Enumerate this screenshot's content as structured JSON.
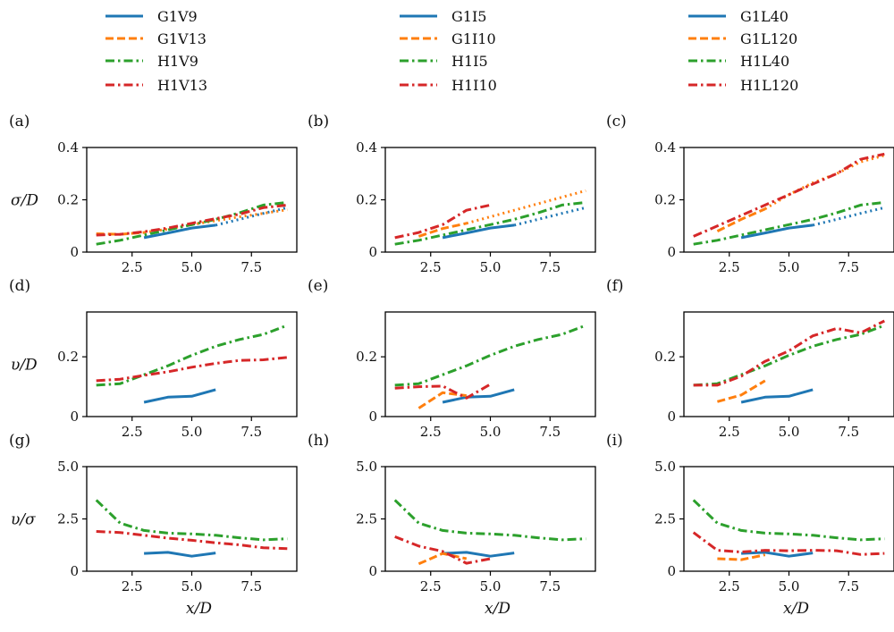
{
  "colors": {
    "G": "#1f77b4",
    "G2": "#ff7f0e",
    "H": "#2ca02c",
    "H2": "#d62728"
  },
  "legends": [
    {
      "entries": [
        {
          "label": "G1V9",
          "style": "solid",
          "color": "#1f77b4"
        },
        {
          "label": "G1V13",
          "style": "dashed",
          "color": "#ff7f0e"
        },
        {
          "label": "H1V9",
          "style": "dashdot",
          "color": "#2ca02c"
        },
        {
          "label": "H1V13",
          "style": "dashdot",
          "color": "#d62728"
        }
      ]
    },
    {
      "entries": [
        {
          "label": "G1I5",
          "style": "solid",
          "color": "#1f77b4"
        },
        {
          "label": "G1I10",
          "style": "dashed",
          "color": "#ff7f0e"
        },
        {
          "label": "H1I5",
          "style": "dashdot",
          "color": "#2ca02c"
        },
        {
          "label": "H1I10",
          "style": "dashdot",
          "color": "#d62728"
        }
      ]
    },
    {
      "entries": [
        {
          "label": "G1L40",
          "style": "solid",
          "color": "#1f77b4"
        },
        {
          "label": "G1L120",
          "style": "dashed",
          "color": "#ff7f0e"
        },
        {
          "label": "H1L40",
          "style": "dashdot",
          "color": "#2ca02c"
        },
        {
          "label": "H1L120",
          "style": "dashdot",
          "color": "#d62728"
        }
      ]
    }
  ],
  "rows": [
    {
      "ylabel": "σ/D",
      "ylim": [
        0,
        0.4
      ],
      "yticks": [
        "0",
        "0.2",
        "0.4"
      ],
      "ytickvals": [
        0,
        0.2,
        0.4
      ]
    },
    {
      "ylabel": "υ/D",
      "ylim": [
        0,
        0.35
      ],
      "yticks": [
        "0",
        "0.2"
      ],
      "ytickvals": [
        0,
        0.2
      ]
    },
    {
      "ylabel": "υ/σ",
      "ylim": [
        0,
        5.0
      ],
      "yticks": [
        "0",
        "2.5",
        "5.0"
      ],
      "ytickvals": [
        0,
        2.5,
        5.0
      ]
    }
  ],
  "xaxis": {
    "xlim": [
      0.6,
      9.4
    ],
    "xticks": [
      "2.5",
      "5.0",
      "7.5"
    ],
    "xtickvals": [
      2.5,
      5.0,
      7.5
    ],
    "xlabel": "x/D"
  },
  "chart_data": [
    {
      "panel": "(a)",
      "type": "line",
      "series": [
        {
          "name": "G1V9",
          "style": "solid",
          "color": "#1f77b4",
          "x": [
            3,
            4,
            5,
            6
          ],
          "y": [
            0.055,
            0.073,
            0.092,
            0.103
          ]
        },
        {
          "style": "dotted",
          "color": "#1f77b4",
          "x": [
            6,
            7,
            8,
            9
          ],
          "y": [
            0.103,
            0.125,
            0.148,
            0.17
          ]
        },
        {
          "name": "G1V13",
          "style": "dashed",
          "color": "#ff7f0e",
          "x": [
            1,
            2,
            3
          ],
          "y": [
            0.07,
            0.068,
            0.075
          ]
        },
        {
          "style": "dotted",
          "color": "#ff7f0e",
          "x": [
            3,
            4,
            5,
            6,
            7,
            8,
            9
          ],
          "y": [
            0.075,
            0.088,
            0.105,
            0.12,
            0.135,
            0.148,
            0.162
          ]
        },
        {
          "name": "H1V9",
          "style": "dashdot",
          "color": "#2ca02c",
          "x": [
            1,
            2,
            3,
            4,
            5,
            6,
            7,
            8,
            9
          ],
          "y": [
            0.03,
            0.045,
            0.065,
            0.085,
            0.105,
            0.125,
            0.15,
            0.18,
            0.19
          ]
        },
        {
          "name": "H1V13",
          "style": "dashdot",
          "color": "#d62728",
          "x": [
            1,
            2,
            3,
            4,
            5,
            6,
            7,
            8,
            9
          ],
          "y": [
            0.065,
            0.068,
            0.078,
            0.092,
            0.11,
            0.128,
            0.145,
            0.17,
            0.18
          ]
        }
      ]
    },
    {
      "panel": "(b)",
      "type": "line",
      "series": [
        {
          "name": "G1I5",
          "style": "solid",
          "color": "#1f77b4",
          "x": [
            3,
            4,
            5,
            6
          ],
          "y": [
            0.055,
            0.073,
            0.092,
            0.103
          ]
        },
        {
          "style": "dotted",
          "color": "#1f77b4",
          "x": [
            6,
            7,
            8,
            9
          ],
          "y": [
            0.103,
            0.125,
            0.148,
            0.17
          ]
        },
        {
          "name": "G1I10",
          "style": "dashed",
          "color": "#ff7f0e",
          "x": [
            2,
            3,
            4
          ],
          "y": [
            0.06,
            0.09,
            0.11
          ]
        },
        {
          "style": "dotted",
          "color": "#ff7f0e",
          "x": [
            4,
            5,
            6,
            7,
            8,
            9
          ],
          "y": [
            0.11,
            0.135,
            0.16,
            0.185,
            0.21,
            0.235
          ]
        },
        {
          "name": "H1I5",
          "style": "dashdot",
          "color": "#2ca02c",
          "x": [
            1,
            2,
            3,
            4,
            5,
            6,
            7,
            8,
            9
          ],
          "y": [
            0.03,
            0.045,
            0.065,
            0.085,
            0.105,
            0.125,
            0.15,
            0.18,
            0.19
          ]
        },
        {
          "name": "H1I10",
          "style": "dashdot",
          "color": "#d62728",
          "x": [
            1,
            2,
            3,
            4,
            5
          ],
          "y": [
            0.055,
            0.075,
            0.105,
            0.16,
            0.18
          ]
        }
      ]
    },
    {
      "panel": "(c)",
      "type": "line",
      "series": [
        {
          "name": "G1L40",
          "style": "solid",
          "color": "#1f77b4",
          "x": [
            3,
            4,
            5,
            6
          ],
          "y": [
            0.055,
            0.073,
            0.092,
            0.103
          ]
        },
        {
          "style": "dotted",
          "color": "#1f77b4",
          "x": [
            6,
            7,
            8,
            9
          ],
          "y": [
            0.103,
            0.125,
            0.148,
            0.17
          ]
        },
        {
          "name": "G1L120",
          "style": "dashed",
          "color": "#ff7f0e",
          "x": [
            2,
            3,
            4
          ],
          "y": [
            0.08,
            0.125,
            0.165
          ]
        },
        {
          "style": "dotted",
          "color": "#ff7f0e",
          "x": [
            4,
            5,
            6,
            7,
            8,
            9
          ],
          "y": [
            0.165,
            0.22,
            0.265,
            0.3,
            0.345,
            0.37
          ]
        },
        {
          "name": "H1L40",
          "style": "dashdot",
          "color": "#2ca02c",
          "x": [
            1,
            2,
            3,
            4,
            5,
            6,
            7,
            8,
            9
          ],
          "y": [
            0.03,
            0.045,
            0.065,
            0.085,
            0.105,
            0.125,
            0.15,
            0.18,
            0.19
          ]
        },
        {
          "name": "H1L120",
          "style": "dashdot",
          "color": "#d62728",
          "x": [
            1,
            2,
            3,
            4,
            5,
            6,
            7,
            8,
            9
          ],
          "y": [
            0.06,
            0.1,
            0.14,
            0.18,
            0.22,
            0.26,
            0.3,
            0.355,
            0.375
          ]
        }
      ]
    },
    {
      "panel": "(d)",
      "type": "line",
      "series": [
        {
          "name": "G1V9",
          "style": "solid",
          "color": "#1f77b4",
          "x": [
            3,
            4,
            5,
            6
          ],
          "y": [
            0.048,
            0.065,
            0.068,
            0.09
          ]
        },
        {
          "name": "H1V9",
          "style": "dashdot",
          "color": "#2ca02c",
          "x": [
            1,
            2,
            3,
            4,
            5,
            6,
            7,
            8,
            9
          ],
          "y": [
            0.105,
            0.11,
            0.14,
            0.17,
            0.205,
            0.235,
            0.258,
            0.275,
            0.305
          ]
        },
        {
          "name": "H1V13",
          "style": "dashdot",
          "color": "#d62728",
          "x": [
            1,
            2,
            3,
            4,
            5,
            6,
            7,
            8,
            9
          ],
          "y": [
            0.12,
            0.125,
            0.138,
            0.15,
            0.165,
            0.178,
            0.188,
            0.19,
            0.198
          ]
        }
      ]
    },
    {
      "panel": "(e)",
      "type": "line",
      "series": [
        {
          "name": "G1I5",
          "style": "solid",
          "color": "#1f77b4",
          "x": [
            3,
            4,
            5,
            6
          ],
          "y": [
            0.048,
            0.065,
            0.068,
            0.09
          ]
        },
        {
          "name": "G1I10",
          "style": "dashed",
          "color": "#ff7f0e",
          "x": [
            2,
            3,
            4
          ],
          "y": [
            0.028,
            0.08,
            0.07
          ]
        },
        {
          "name": "H1I5",
          "style": "dashdot",
          "color": "#2ca02c",
          "x": [
            1,
            2,
            3,
            4,
            5,
            6,
            7,
            8,
            9
          ],
          "y": [
            0.105,
            0.11,
            0.14,
            0.17,
            0.205,
            0.235,
            0.258,
            0.275,
            0.305
          ]
        },
        {
          "name": "H1I10",
          "style": "dashdot",
          "color": "#d62728",
          "x": [
            1,
            2,
            3,
            4,
            5
          ],
          "y": [
            0.095,
            0.1,
            0.102,
            0.062,
            0.108
          ]
        }
      ]
    },
    {
      "panel": "(f)",
      "type": "line",
      "series": [
        {
          "name": "G1L40",
          "style": "solid",
          "color": "#1f77b4",
          "x": [
            3,
            4,
            5,
            6
          ],
          "y": [
            0.048,
            0.065,
            0.068,
            0.09
          ]
        },
        {
          "name": "G1L120",
          "style": "dashed",
          "color": "#ff7f0e",
          "x": [
            2,
            3,
            4
          ],
          "y": [
            0.05,
            0.072,
            0.12
          ]
        },
        {
          "name": "H1L40",
          "style": "dashdot",
          "color": "#2ca02c",
          "x": [
            1,
            2,
            3,
            4,
            5,
            6,
            7,
            8,
            9
          ],
          "y": [
            0.105,
            0.11,
            0.14,
            0.17,
            0.205,
            0.235,
            0.258,
            0.275,
            0.305
          ]
        },
        {
          "name": "H1L120",
          "style": "dashdot",
          "color": "#d62728",
          "x": [
            1,
            2,
            3,
            4,
            5,
            6,
            7,
            8,
            9
          ],
          "y": [
            0.105,
            0.105,
            0.135,
            0.185,
            0.22,
            0.27,
            0.295,
            0.28,
            0.32
          ]
        }
      ]
    },
    {
      "panel": "(g)",
      "type": "line",
      "series": [
        {
          "name": "G1V9",
          "style": "solid",
          "color": "#1f77b4",
          "x": [
            3,
            4,
            5,
            6
          ],
          "y": [
            0.85,
            0.9,
            0.72,
            0.87
          ]
        },
        {
          "name": "H1V9",
          "style": "dashdot",
          "color": "#2ca02c",
          "x": [
            1,
            2,
            3,
            4,
            5,
            6,
            7,
            8,
            9
          ],
          "y": [
            3.4,
            2.3,
            1.95,
            1.82,
            1.78,
            1.72,
            1.6,
            1.5,
            1.55
          ]
        },
        {
          "name": "H1V13",
          "style": "dashdot",
          "color": "#d62728",
          "x": [
            1,
            2,
            3,
            4,
            5,
            6,
            7,
            8,
            9
          ],
          "y": [
            1.9,
            1.85,
            1.72,
            1.58,
            1.48,
            1.36,
            1.26,
            1.12,
            1.08
          ]
        }
      ]
    },
    {
      "panel": "(h)",
      "type": "line",
      "series": [
        {
          "name": "G1I5",
          "style": "solid",
          "color": "#1f77b4",
          "x": [
            3,
            4,
            5,
            6
          ],
          "y": [
            0.85,
            0.9,
            0.72,
            0.87
          ]
        },
        {
          "name": "G1I10",
          "style": "dashed",
          "color": "#ff7f0e",
          "x": [
            2,
            3,
            4
          ],
          "y": [
            0.35,
            0.85,
            0.6
          ]
        },
        {
          "name": "H1I5",
          "style": "dashdot",
          "color": "#2ca02c",
          "x": [
            1,
            2,
            3,
            4,
            5,
            6,
            7,
            8,
            9
          ],
          "y": [
            3.4,
            2.3,
            1.95,
            1.82,
            1.78,
            1.72,
            1.6,
            1.5,
            1.55
          ]
        },
        {
          "name": "H1I10",
          "style": "dashdot",
          "color": "#d62728",
          "x": [
            1,
            2,
            3,
            4,
            5
          ],
          "y": [
            1.65,
            1.2,
            0.95,
            0.38,
            0.6
          ]
        }
      ]
    },
    {
      "panel": "(i)",
      "type": "line",
      "series": [
        {
          "name": "G1L40",
          "style": "solid",
          "color": "#1f77b4",
          "x": [
            3,
            4,
            5,
            6
          ],
          "y": [
            0.85,
            0.9,
            0.72,
            0.87
          ]
        },
        {
          "name": "G1L120",
          "style": "dashed",
          "color": "#ff7f0e",
          "x": [
            2,
            3,
            4
          ],
          "y": [
            0.6,
            0.55,
            0.78
          ]
        },
        {
          "name": "H1L40",
          "style": "dashdot",
          "color": "#2ca02c",
          "x": [
            1,
            2,
            3,
            4,
            5,
            6,
            7,
            8,
            9
          ],
          "y": [
            3.4,
            2.3,
            1.95,
            1.82,
            1.78,
            1.72,
            1.6,
            1.5,
            1.55
          ]
        },
        {
          "name": "H1L120",
          "style": "dashdot",
          "color": "#d62728",
          "x": [
            1,
            2,
            3,
            4,
            5,
            6,
            7,
            8,
            9
          ],
          "y": [
            1.85,
            1.0,
            0.92,
            1.0,
            0.98,
            1.0,
            0.98,
            0.8,
            0.85
          ]
        }
      ]
    }
  ]
}
